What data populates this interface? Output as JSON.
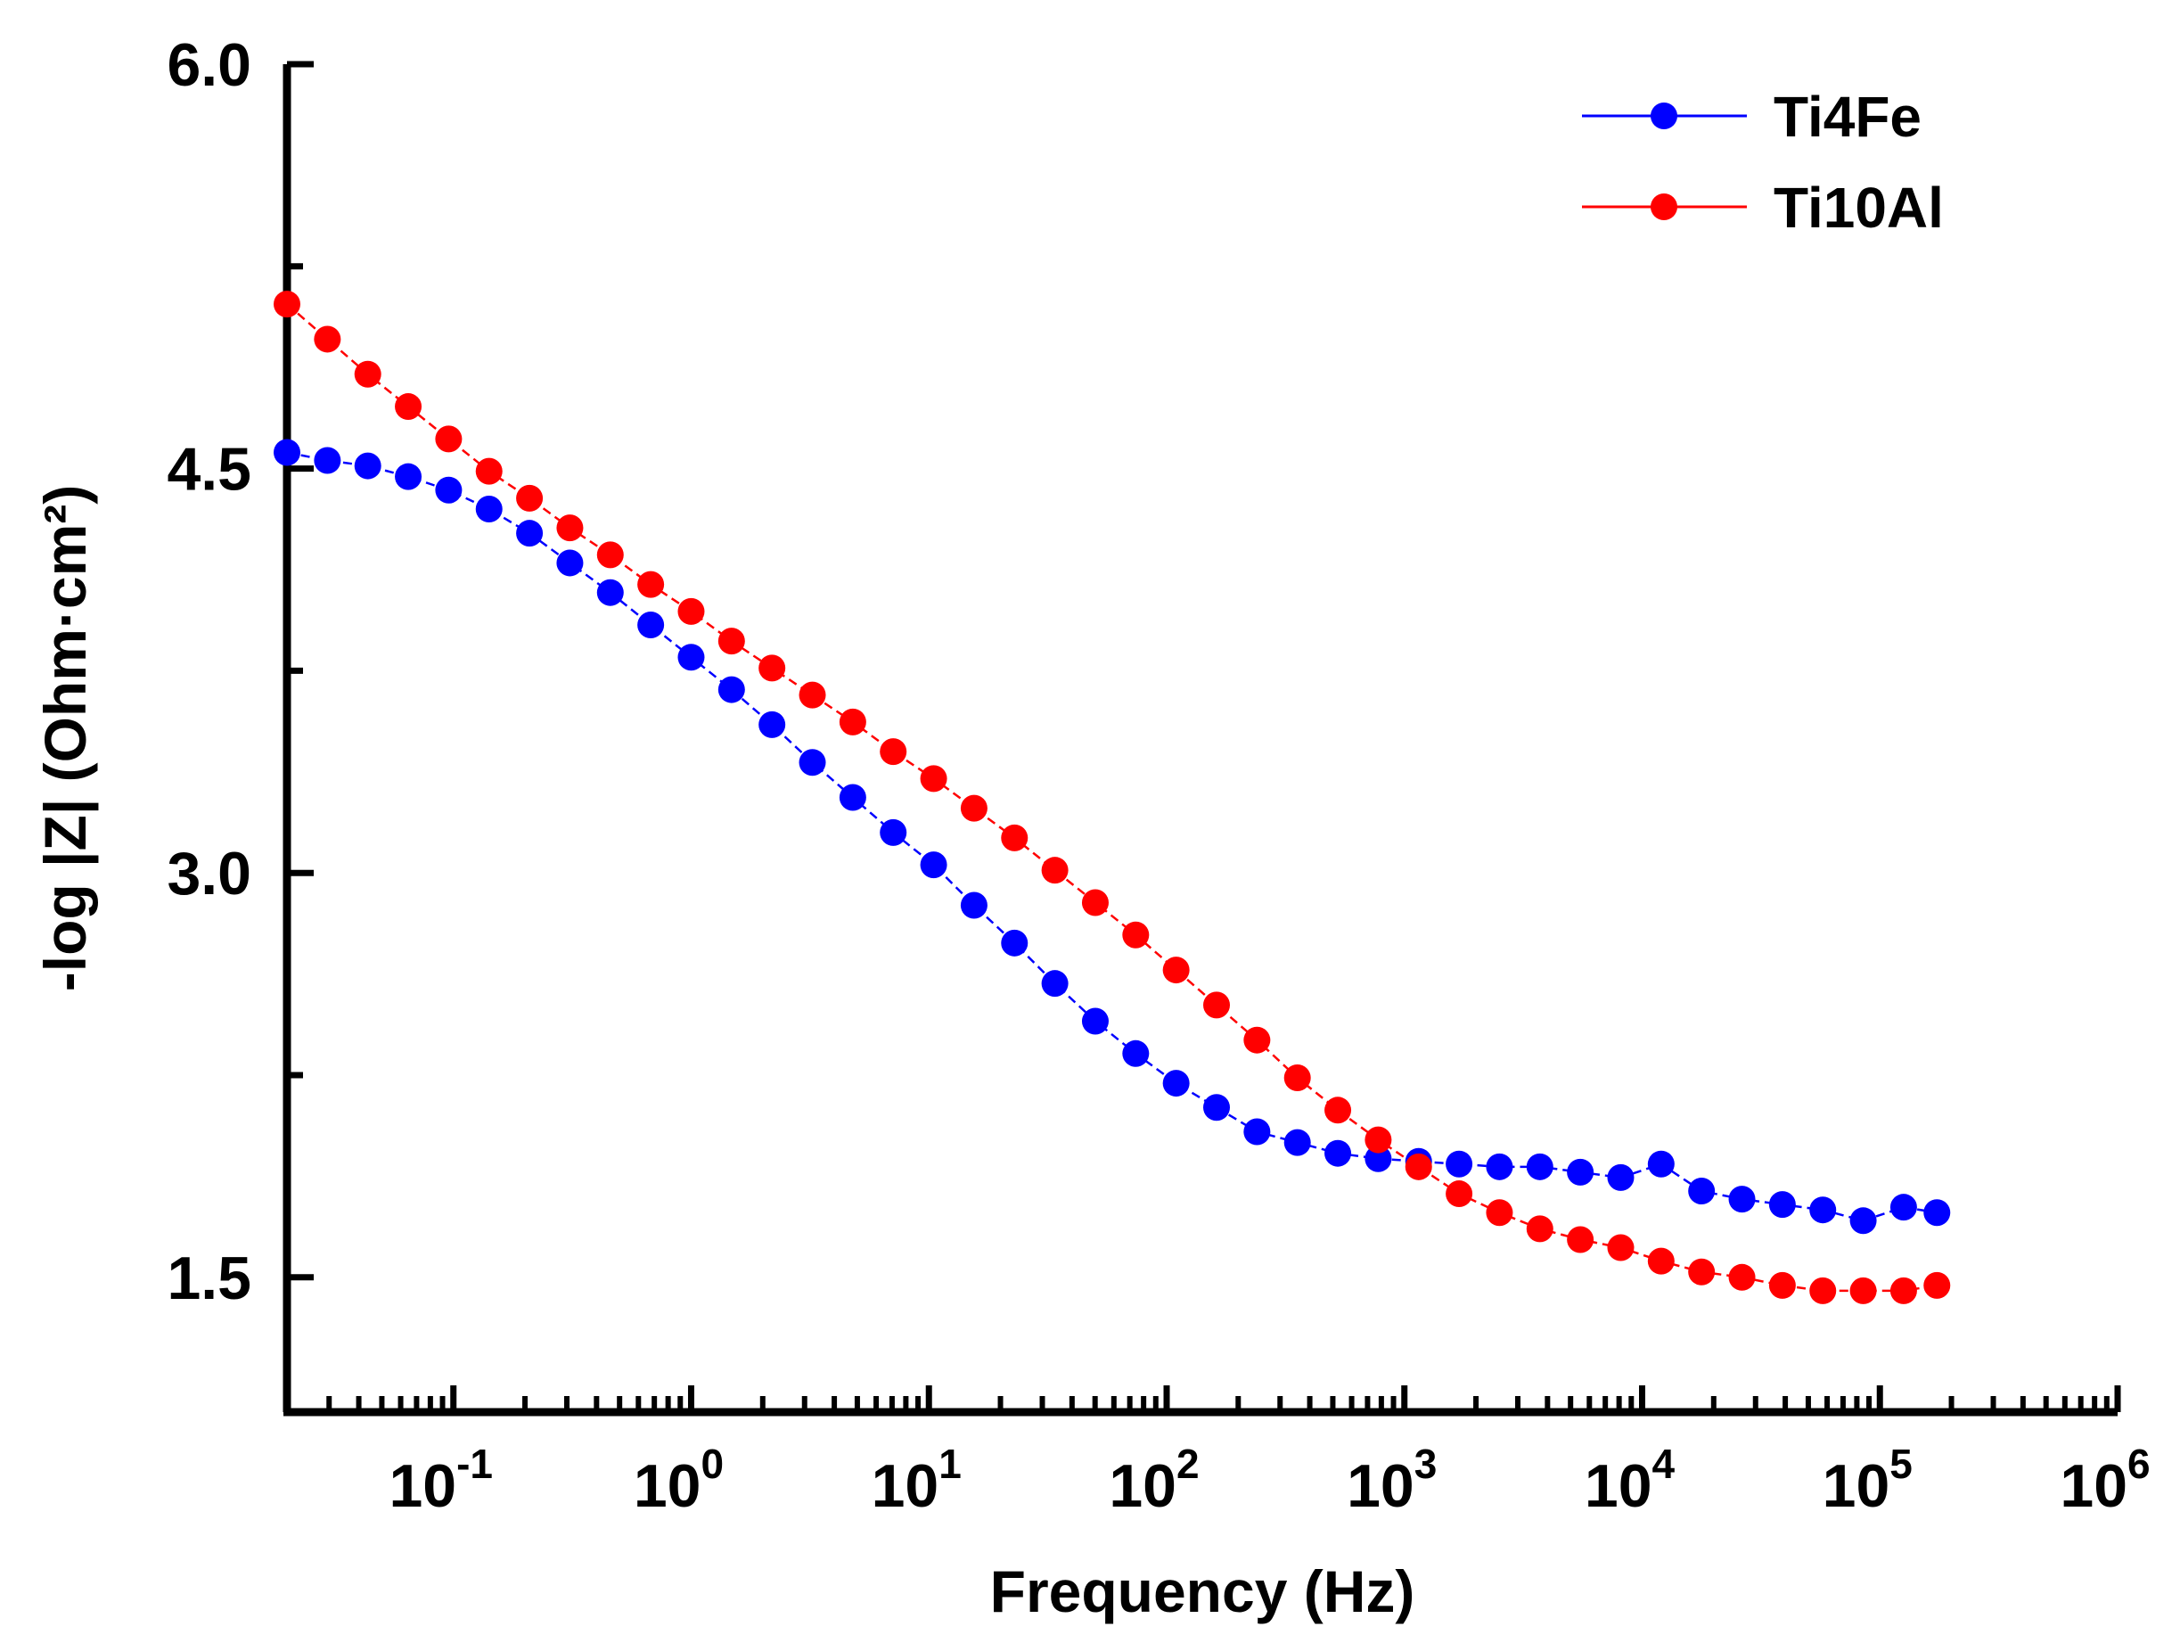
{
  "chart_data": {
    "type": "line",
    "title": "",
    "xlabel": "Frequency (Hz)",
    "ylabel": "-log |Z| (Ohm·cm²)",
    "xscale": "log",
    "xlim_exponent": [
      -1.7,
      6
    ],
    "ylim": [
      1.0,
      6.0
    ],
    "x_tick_labels": [
      {
        "base": "10",
        "exp": "-1"
      },
      {
        "base": "10",
        "exp": "0"
      },
      {
        "base": "10",
        "exp": "1"
      },
      {
        "base": "10",
        "exp": "2"
      },
      {
        "base": "10",
        "exp": "3"
      },
      {
        "base": "10",
        "exp": "4"
      },
      {
        "base": "10",
        "exp": "5"
      },
      {
        "base": "10",
        "exp": "6"
      }
    ],
    "y_tick_labels": [
      "1.5",
      "3.0",
      "4.5",
      "6.0"
    ],
    "legend_position": "top-right",
    "x_log10": [
      -1.7,
      -1.53,
      -1.36,
      -1.19,
      -1.02,
      -0.85,
      -0.68,
      -0.51,
      -0.34,
      -0.17,
      0.0,
      0.17,
      0.34,
      0.51,
      0.68,
      0.85,
      1.02,
      1.19,
      1.36,
      1.53,
      1.7,
      1.87,
      2.04,
      2.21,
      2.38,
      2.55,
      2.72,
      2.89,
      3.06,
      3.23,
      3.4,
      3.57,
      3.74,
      3.91,
      4.08,
      4.25,
      4.42,
      4.59,
      4.76,
      4.93,
      5.1,
      5.24
    ],
    "series": [
      {
        "name": "Ti4Fe",
        "color": "#0000ff",
        "values": [
          4.56,
          4.53,
          4.51,
          4.47,
          4.42,
          4.35,
          4.26,
          4.15,
          4.04,
          3.92,
          3.8,
          3.68,
          3.55,
          3.41,
          3.28,
          3.15,
          3.03,
          2.88,
          2.74,
          2.59,
          2.45,
          2.33,
          2.22,
          2.13,
          2.04,
          2.0,
          1.96,
          1.94,
          1.93,
          1.92,
          1.91,
          1.91,
          1.89,
          1.87,
          1.92,
          1.82,
          1.79,
          1.77,
          1.75,
          1.71,
          1.76,
          1.74
        ]
      },
      {
        "name": "Ti10Al",
        "color": "#ff0000",
        "values": [
          5.11,
          4.98,
          4.85,
          4.73,
          4.61,
          4.49,
          4.39,
          4.28,
          4.18,
          4.07,
          3.97,
          3.86,
          3.76,
          3.66,
          3.56,
          3.45,
          3.35,
          3.24,
          3.13,
          3.01,
          2.89,
          2.77,
          2.64,
          2.51,
          2.38,
          2.24,
          2.12,
          2.01,
          1.91,
          1.81,
          1.74,
          1.68,
          1.64,
          1.61,
          1.56,
          1.52,
          1.5,
          1.47,
          1.45,
          1.45,
          1.45,
          1.47
        ]
      }
    ]
  }
}
